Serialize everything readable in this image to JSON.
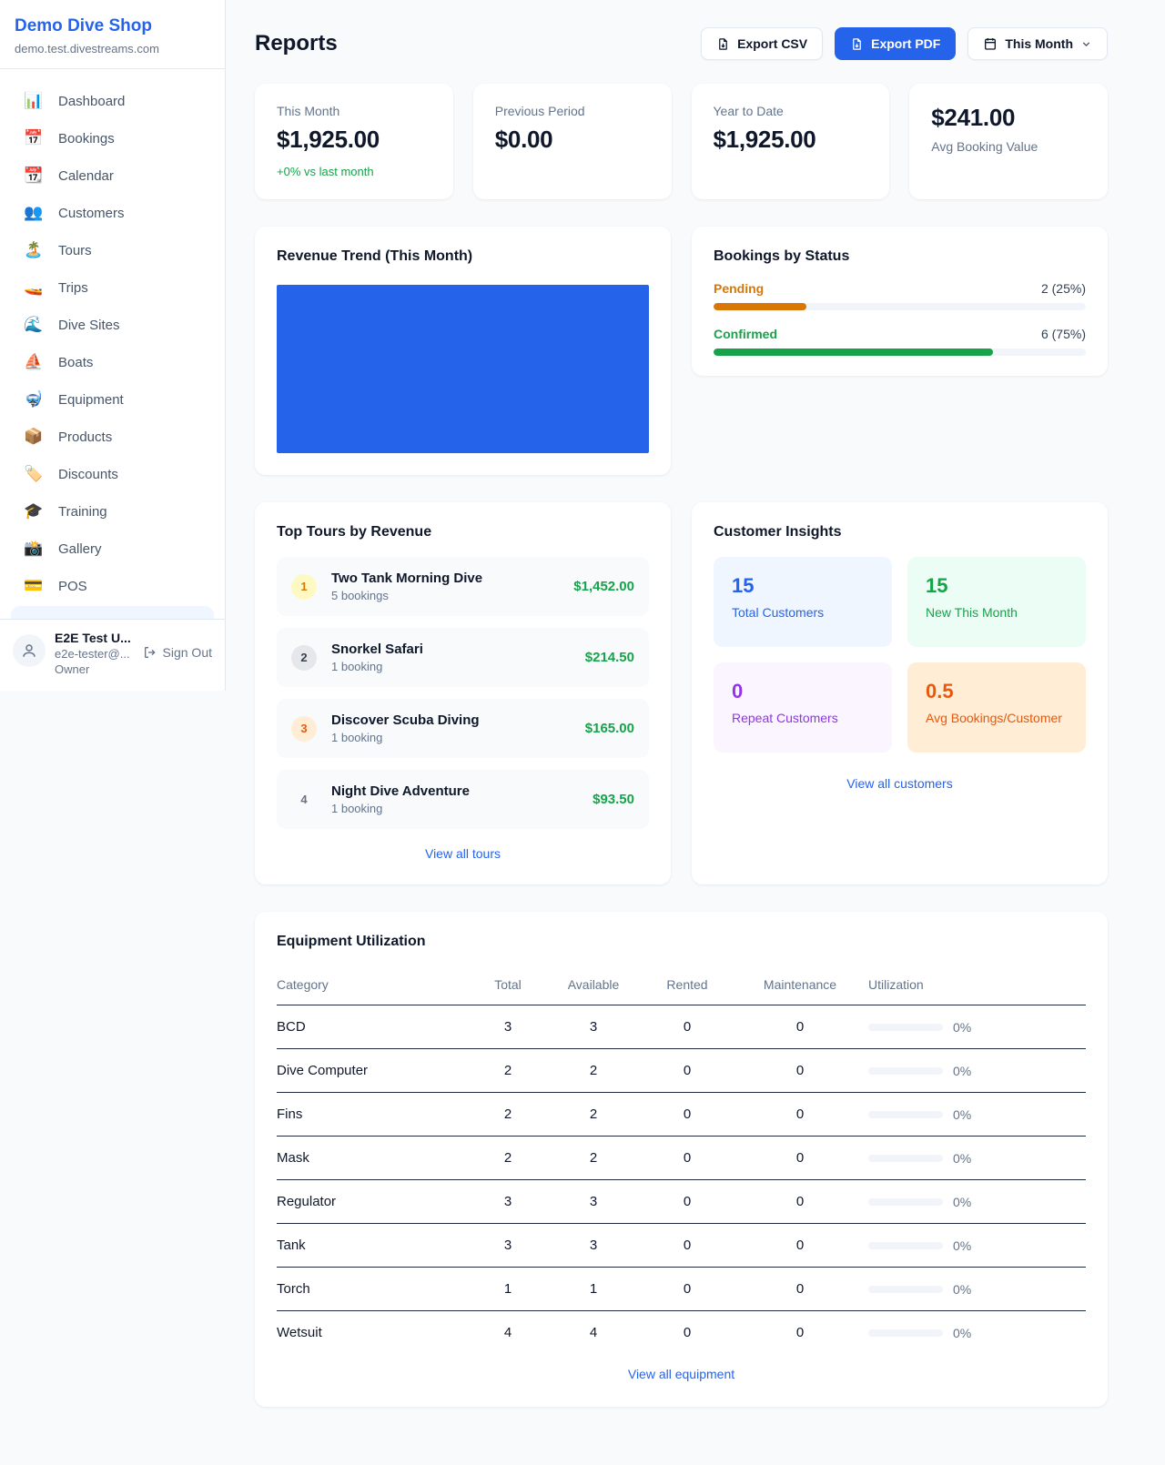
{
  "colors": {
    "accent": "#2563eb",
    "green": "#16a34a",
    "pending_orange": "#d97706",
    "maintenance_orange": "#ea580c",
    "purple": "#9333ea"
  },
  "sidebar": {
    "title": "Demo Dive Shop",
    "domain": "demo.test.divestreams.com",
    "items": [
      {
        "slug": "dashboard",
        "icon_name": "dashboard-chart-icon",
        "glyph": "📊",
        "label": "Dashboard"
      },
      {
        "slug": "bookings",
        "icon_name": "bookings-calendar-icon",
        "glyph": "📅",
        "label": "Bookings"
      },
      {
        "slug": "calendar",
        "icon_name": "calendar-icon",
        "glyph": "📆",
        "label": "Calendar"
      },
      {
        "slug": "customers",
        "icon_name": "customers-people-icon",
        "glyph": "👥",
        "label": "Customers"
      },
      {
        "slug": "tours",
        "icon_name": "tours-island-icon",
        "glyph": "🏝️",
        "label": "Tours"
      },
      {
        "slug": "trips",
        "icon_name": "trips-speedboat-icon",
        "glyph": "🚤",
        "label": "Trips"
      },
      {
        "slug": "dive-sites",
        "icon_name": "dive-sites-wave-icon",
        "glyph": "🌊",
        "label": "Dive Sites"
      },
      {
        "slug": "boats",
        "icon_name": "boats-sailboat-icon",
        "glyph": "⛵",
        "label": "Boats"
      },
      {
        "slug": "equipment",
        "icon_name": "equipment-mask-icon",
        "glyph": "🤿",
        "label": "Equipment"
      },
      {
        "slug": "products",
        "icon_name": "products-box-icon",
        "glyph": "📦",
        "label": "Products"
      },
      {
        "slug": "discounts",
        "icon_name": "discounts-tag-icon",
        "glyph": "🏷️",
        "label": "Discounts"
      },
      {
        "slug": "training",
        "icon_name": "training-cap-icon",
        "glyph": "🎓",
        "label": "Training"
      },
      {
        "slug": "gallery",
        "icon_name": "gallery-camera-icon",
        "glyph": "📸",
        "label": "Gallery"
      },
      {
        "slug": "pos",
        "icon_name": "pos-card-icon",
        "glyph": "💳",
        "label": "POS"
      }
    ],
    "user": {
      "name": "E2E Test U...",
      "email": "e2e-tester@...",
      "role": "Owner",
      "sign_out_label": "Sign Out"
    }
  },
  "header": {
    "title": "Reports",
    "export_csv_label": "Export CSV",
    "export_pdf_label": "Export PDF",
    "period_label": "This Month"
  },
  "stats": [
    {
      "label": "This Month",
      "value": "$1,925.00",
      "delta": "+0% vs last month",
      "value_first": false
    },
    {
      "label": "Previous Period",
      "value": "$0.00",
      "delta": "",
      "value_first": false
    },
    {
      "label": "Year to Date",
      "value": "$1,925.00",
      "delta": "",
      "value_first": false
    },
    {
      "label": "Avg Booking Value",
      "value": "$241.00",
      "delta": "",
      "value_first": true
    }
  ],
  "revenue_trend": {
    "title": "Revenue Trend (This Month)",
    "bar_color": "#2563eb"
  },
  "bookings_by_status": {
    "title": "Bookings by Status",
    "rows": [
      {
        "label": "Pending",
        "value_text": "2 (25%)",
        "percent": 25,
        "color": "#d97706"
      },
      {
        "label": "Confirmed",
        "value_text": "6 (75%)",
        "percent": 75,
        "color": "#16a34a"
      }
    ]
  },
  "top_tours": {
    "title": "Top Tours by Revenue",
    "rows": [
      {
        "rank": "1",
        "name": "Two Tank Morning Dive",
        "bookings": "5 bookings",
        "amount": "$1,452.00"
      },
      {
        "rank": "2",
        "name": "Snorkel Safari",
        "bookings": "1 booking",
        "amount": "$214.50"
      },
      {
        "rank": "3",
        "name": "Discover Scuba Diving",
        "bookings": "1 booking",
        "amount": "$165.00"
      },
      {
        "rank": "4",
        "name": "Night Dive Adventure",
        "bookings": "1 booking",
        "amount": "$93.50"
      }
    ],
    "view_all_label": "View all tours"
  },
  "customer_insights": {
    "title": "Customer Insights",
    "boxes": [
      {
        "value": "15",
        "label": "Total Customers",
        "fg": "#2563eb",
        "bg": "#eff6ff"
      },
      {
        "value": "15",
        "label": "New This Month",
        "fg": "#16a34a",
        "bg": "#ecfdf5"
      },
      {
        "value": "0",
        "label": "Repeat Customers",
        "fg": "#9333ea",
        "bg": "#faf5ff"
      },
      {
        "value": "0.5",
        "label": "Avg Bookings/Customer",
        "fg": "#ea580c",
        "bg": "#ffedd5"
      }
    ],
    "view_all_label": "View all customers"
  },
  "equipment": {
    "title": "Equipment Utilization",
    "columns": [
      "Category",
      "Total",
      "Available",
      "Rented",
      "Maintenance",
      "Utilization"
    ],
    "rows": [
      {
        "category": "BCD",
        "total": "3",
        "available": "3",
        "rented": "0",
        "maintenance": "0",
        "utilization": "0%"
      },
      {
        "category": "Dive Computer",
        "total": "2",
        "available": "2",
        "rented": "0",
        "maintenance": "0",
        "utilization": "0%"
      },
      {
        "category": "Fins",
        "total": "2",
        "available": "2",
        "rented": "0",
        "maintenance": "0",
        "utilization": "0%"
      },
      {
        "category": "Mask",
        "total": "2",
        "available": "2",
        "rented": "0",
        "maintenance": "0",
        "utilization": "0%"
      },
      {
        "category": "Regulator",
        "total": "3",
        "available": "3",
        "rented": "0",
        "maintenance": "0",
        "utilization": "0%"
      },
      {
        "category": "Tank",
        "total": "3",
        "available": "3",
        "rented": "0",
        "maintenance": "0",
        "utilization": "0%"
      },
      {
        "category": "Torch",
        "total": "1",
        "available": "1",
        "rented": "0",
        "maintenance": "0",
        "utilization": "0%"
      },
      {
        "category": "Wetsuit",
        "total": "4",
        "available": "4",
        "rented": "0",
        "maintenance": "0",
        "utilization": "0%"
      }
    ],
    "view_all_label": "View all equipment"
  }
}
